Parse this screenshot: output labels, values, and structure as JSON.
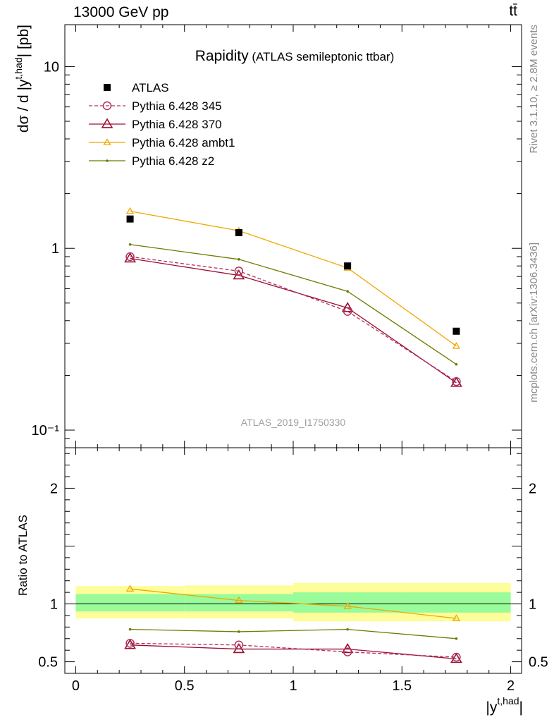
{
  "header": {
    "left_label": "13000 GeV pp",
    "right_label": "tt̄"
  },
  "chart_data": [
    {
      "type": "line",
      "panel": "main",
      "title": "Rapidity",
      "subtitle": "(ATLAS semileptonic ttbar)",
      "ylabel_parts": {
        "prefix": "dσ / d |y",
        "sup": "t,had",
        "suffix": "| [pb]"
      },
      "xlabel_parts": {
        "prefix": "|y",
        "sup": "t,had",
        "suffix": "|"
      },
      "yscale": "log",
      "ylim": [
        0.08,
        17
      ],
      "xlim": [
        -0.05,
        2.05
      ],
      "y_tick_labels": [
        "10",
        "1",
        "10⁻¹"
      ],
      "x": [
        0.25,
        0.75,
        1.25,
        1.75
      ],
      "x_bin_edges": [
        0,
        0.5,
        1,
        1.5,
        2
      ],
      "legend_position": "top-left",
      "watermark": "ATLAS_2019_I1750330",
      "side_text_top": "Rivet 3.1.10, ≥ 2.8M events",
      "side_text_bottom": "mcplots.cern.ch [arXiv:1306.3436]",
      "series": [
        {
          "name": "ATLAS",
          "values": [
            1.45,
            1.22,
            0.8,
            0.35
          ],
          "color": "#000000",
          "marker": "filled-square",
          "line": "none"
        },
        {
          "name": "Pythia 6.428 345",
          "values": [
            0.9,
            0.75,
            0.45,
            0.185
          ],
          "color": "#b03060",
          "marker": "open-circle",
          "line": "dashed"
        },
        {
          "name": "Pythia 6.428 370",
          "values": [
            0.88,
            0.71,
            0.47,
            0.182
          ],
          "color": "#9b1030",
          "marker": "open-triangle",
          "line": "solid"
        },
        {
          "name": "Pythia 6.428 ambt1",
          "values": [
            1.6,
            1.25,
            0.78,
            0.29
          ],
          "color": "#f0a800",
          "marker": "small-open-triangle",
          "line": "solid"
        },
        {
          "name": "Pythia 6.428 z2",
          "values": [
            1.05,
            0.87,
            0.58,
            0.23
          ],
          "color": "#6e7a00",
          "marker": "dot",
          "line": "solid"
        }
      ]
    },
    {
      "type": "line",
      "panel": "ratio",
      "ylabel": "Ratio to ATLAS",
      "ylim": [
        0.4,
        2.35
      ],
      "xlim": [
        -0.05,
        2.05
      ],
      "x_tick_labels": [
        "0",
        "0.5",
        "1",
        "1.5",
        "2"
      ],
      "y_tick_labels": [
        "2",
        "1",
        "0.5"
      ],
      "x": [
        0.25,
        0.75,
        1.25,
        1.75
      ],
      "x_bin_edges": [
        0,
        0.5,
        1,
        1.5,
        2
      ],
      "band_inner": [
        [
          0.935,
          1.085
        ],
        [
          0.935,
          1.085
        ],
        [
          0.925,
          1.1
        ],
        [
          0.925,
          1.1
        ]
      ],
      "band_outer": [
        [
          0.875,
          1.155
        ],
        [
          0.875,
          1.16
        ],
        [
          0.85,
          1.18
        ],
        [
          0.85,
          1.18
        ]
      ],
      "series": [
        {
          "name": "Pythia 6.428 345",
          "values": [
            0.66,
            0.645,
            0.585,
            0.54
          ],
          "color": "#b03060",
          "marker": "open-circle",
          "line": "dashed"
        },
        {
          "name": "Pythia 6.428 370",
          "values": [
            0.645,
            0.61,
            0.61,
            0.525
          ],
          "color": "#9b1030",
          "marker": "open-triangle",
          "line": "solid"
        },
        {
          "name": "Pythia 6.428 ambt1",
          "values": [
            1.13,
            1.03,
            0.98,
            0.875
          ],
          "color": "#f0a800",
          "marker": "small-open-triangle",
          "line": "solid"
        },
        {
          "name": "Pythia 6.428 z2",
          "values": [
            0.78,
            0.76,
            0.78,
            0.7
          ],
          "color": "#6e7a00",
          "marker": "dot",
          "line": "solid"
        }
      ]
    }
  ]
}
